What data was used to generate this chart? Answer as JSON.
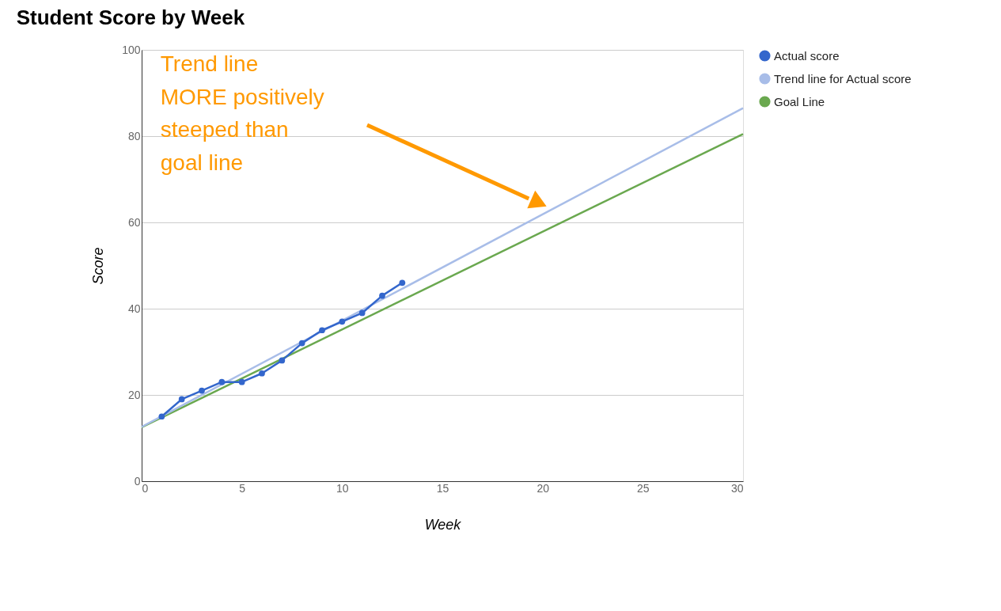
{
  "chart_data": {
    "type": "line",
    "title": "Student Score by Week",
    "xlabel": "Week",
    "ylabel": "Score",
    "xlim": [
      0,
      30
    ],
    "xticks": [
      0,
      5,
      10,
      15,
      20,
      25,
      30
    ],
    "ylim": [
      0,
      100
    ],
    "yticks": [
      0,
      20,
      40,
      60,
      80,
      100
    ],
    "grid": "y",
    "legend": "top right",
    "series": [
      {
        "name": "Actual score",
        "color": "#3366cc",
        "marker": "circle",
        "x": [
          1,
          2,
          3,
          4,
          5,
          6,
          7,
          8,
          9,
          10,
          11,
          12,
          13
        ],
        "values": [
          15,
          19,
          21,
          23,
          23,
          25,
          28,
          32,
          35,
          37,
          39,
          43,
          46
        ]
      },
      {
        "name": "Trend line for Actual score",
        "color": "#a8bde8",
        "marker": "none",
        "x": [
          0,
          30
        ],
        "values": [
          12.6,
          86.5
        ]
      },
      {
        "name": "Goal Line",
        "color": "#6aa84f",
        "marker": "none",
        "x": [
          0,
          30
        ],
        "values": [
          12.5,
          80.5
        ]
      }
    ],
    "annotations": [
      "Trend line\nMORE positively\nsteeped than\ngoal line"
    ]
  }
}
